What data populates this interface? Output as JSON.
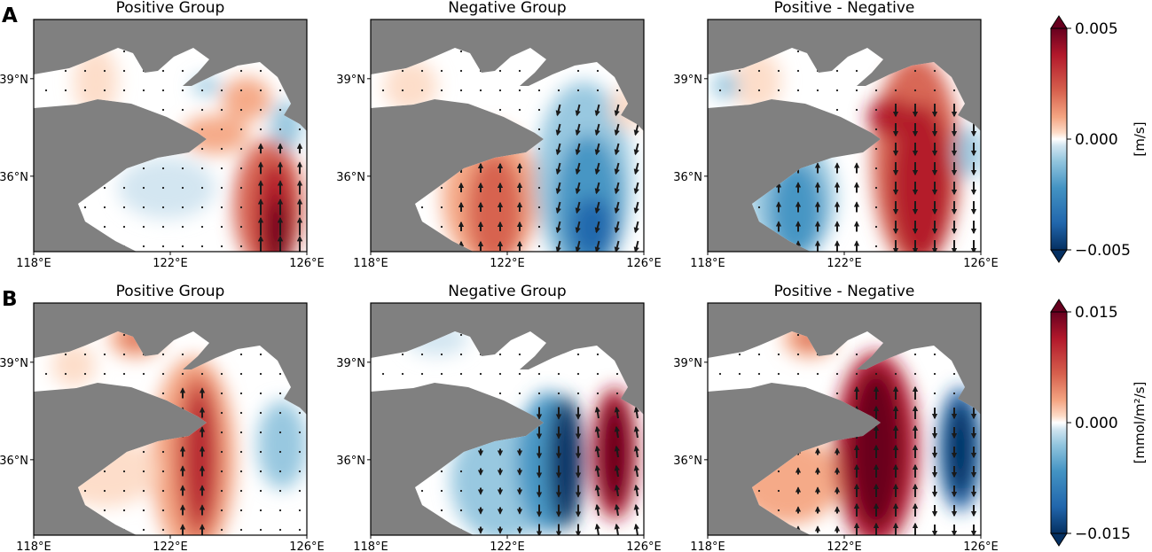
{
  "figure": {
    "rows": [
      {
        "label": "A",
        "colorbar": {
          "max": "0.005",
          "mid": "0.000",
          "min": "−0.005",
          "unit": "[m/s]"
        },
        "panels": [
          {
            "title": "Positive Group"
          },
          {
            "title": "Negative Group"
          },
          {
            "title": "Positive - Negative"
          }
        ]
      },
      {
        "label": "B",
        "colorbar": {
          "max": "0.015",
          "mid": "0.000",
          "min": "−0.015",
          "unit": "[mmol/m²/s]"
        },
        "panels": [
          {
            "title": "Positive Group"
          },
          {
            "title": "Negative Group"
          },
          {
            "title": "Positive - Negative"
          }
        ]
      }
    ],
    "lon_ticks": [
      "118°E",
      "122°E",
      "126°E"
    ],
    "lat_ticks": [
      "39°N",
      "36°N"
    ],
    "colors": {
      "land": "#808080",
      "positive": "#b2182b",
      "negative": "#2166ac",
      "neutral": "#ffffff",
      "arrows": "#1a1a1a"
    }
  }
}
